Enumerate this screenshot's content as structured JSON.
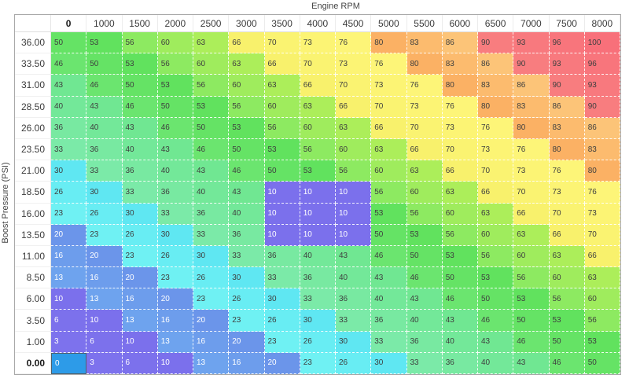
{
  "chart_title": "Engine RPM",
  "y_axis_label": "Boost Pressure (PSI)",
  "table": {
    "corner_label": "",
    "columns": [
      "0",
      "1000",
      "1500",
      "2000",
      "2500",
      "3000",
      "3500",
      "4000",
      "4500",
      "5000",
      "5500",
      "6000",
      "6500",
      "7000",
      "7500",
      "8000"
    ],
    "rows": [
      "36.00",
      "33.50",
      "31.00",
      "28.50",
      "26.00",
      "23.50",
      "21.00",
      "18.50",
      "16.00",
      "13.50",
      "11.00",
      "8.50",
      "6.00",
      "3.50",
      "1.00",
      "0.00"
    ],
    "grid": [
      [
        50,
        53,
        56,
        60,
        63,
        66,
        70,
        73,
        76,
        80,
        83,
        86,
        90,
        93,
        96,
        100
      ],
      [
        46,
        50,
        53,
        56,
        60,
        63,
        66,
        70,
        73,
        76,
        80,
        83,
        86,
        90,
        93,
        96
      ],
      [
        43,
        46,
        50,
        53,
        56,
        60,
        63,
        66,
        70,
        73,
        76,
        80,
        83,
        86,
        90,
        93
      ],
      [
        40,
        43,
        46,
        50,
        53,
        56,
        60,
        63,
        66,
        70,
        73,
        76,
        80,
        83,
        86,
        90
      ],
      [
        36,
        40,
        43,
        46,
        50,
        53,
        56,
        60,
        63,
        66,
        70,
        73,
        76,
        80,
        83,
        86
      ],
      [
        33,
        36,
        40,
        43,
        46,
        50,
        53,
        56,
        60,
        63,
        66,
        70,
        73,
        76,
        80,
        83
      ],
      [
        30,
        33,
        36,
        40,
        43,
        46,
        50,
        53,
        56,
        60,
        63,
        66,
        70,
        73,
        76,
        80
      ],
      [
        26,
        30,
        33,
        36,
        40,
        43,
        10,
        10,
        10,
        56,
        60,
        63,
        66,
        70,
        73,
        76
      ],
      [
        23,
        26,
        30,
        33,
        36,
        40,
        10,
        10,
        10,
        53,
        56,
        60,
        63,
        66,
        70,
        73
      ],
      [
        20,
        23,
        26,
        30,
        33,
        36,
        10,
        10,
        10,
        50,
        53,
        56,
        60,
        63,
        66,
        70
      ],
      [
        16,
        20,
        23,
        26,
        30,
        33,
        36,
        40,
        43,
        46,
        50,
        53,
        56,
        60,
        63,
        66
      ],
      [
        13,
        16,
        20,
        23,
        26,
        30,
        33,
        36,
        40,
        43,
        46,
        50,
        53,
        56,
        60,
        63
      ],
      [
        10,
        13,
        16,
        20,
        23,
        26,
        30,
        33,
        36,
        40,
        43,
        46,
        50,
        53,
        56,
        60
      ],
      [
        6,
        10,
        13,
        16,
        20,
        23,
        26,
        30,
        33,
        36,
        40,
        43,
        46,
        50,
        53,
        56
      ],
      [
        3,
        6,
        10,
        13,
        16,
        20,
        23,
        26,
        30,
        33,
        36,
        40,
        43,
        46,
        50,
        53
      ],
      [
        0,
        3,
        6,
        10,
        13,
        16,
        20,
        23,
        26,
        30,
        33,
        36,
        40,
        43,
        46,
        50
      ]
    ],
    "selected": {
      "row_index": 15,
      "col_index": 0,
      "row_label": "0.00",
      "col_label": "0",
      "value": 0
    }
  },
  "colors": {
    "selected_fill": "#2D9BE8",
    "selected_border": "#51616C",
    "selected_text": "#FFFFFF",
    "outer_border": "#A9A9A9",
    "cell_text_dark": "#3F3F3F",
    "cell_text_light": "#FFFFFF",
    "white_text_max": 20,
    "gradient_stops": [
      [
        0,
        "#7E73ED"
      ],
      [
        10,
        "#7B70EC"
      ],
      [
        13,
        "#6EA3EE"
      ],
      [
        20,
        "#6B95EA"
      ],
      [
        23,
        "#6FF1F3"
      ],
      [
        30,
        "#5FE7F2"
      ],
      [
        33,
        "#7BEAA8"
      ],
      [
        43,
        "#70E792"
      ],
      [
        46,
        "#6BE56F"
      ],
      [
        53,
        "#61E25E"
      ],
      [
        56,
        "#8DEA61"
      ],
      [
        63,
        "#ACEE5A"
      ],
      [
        66,
        "#F8F16C"
      ],
      [
        76,
        "#FDF578"
      ],
      [
        80,
        "#FBB164"
      ],
      [
        86,
        "#FCC478"
      ],
      [
        90,
        "#F87D7F"
      ],
      [
        100,
        "#F8707A"
      ]
    ]
  }
}
